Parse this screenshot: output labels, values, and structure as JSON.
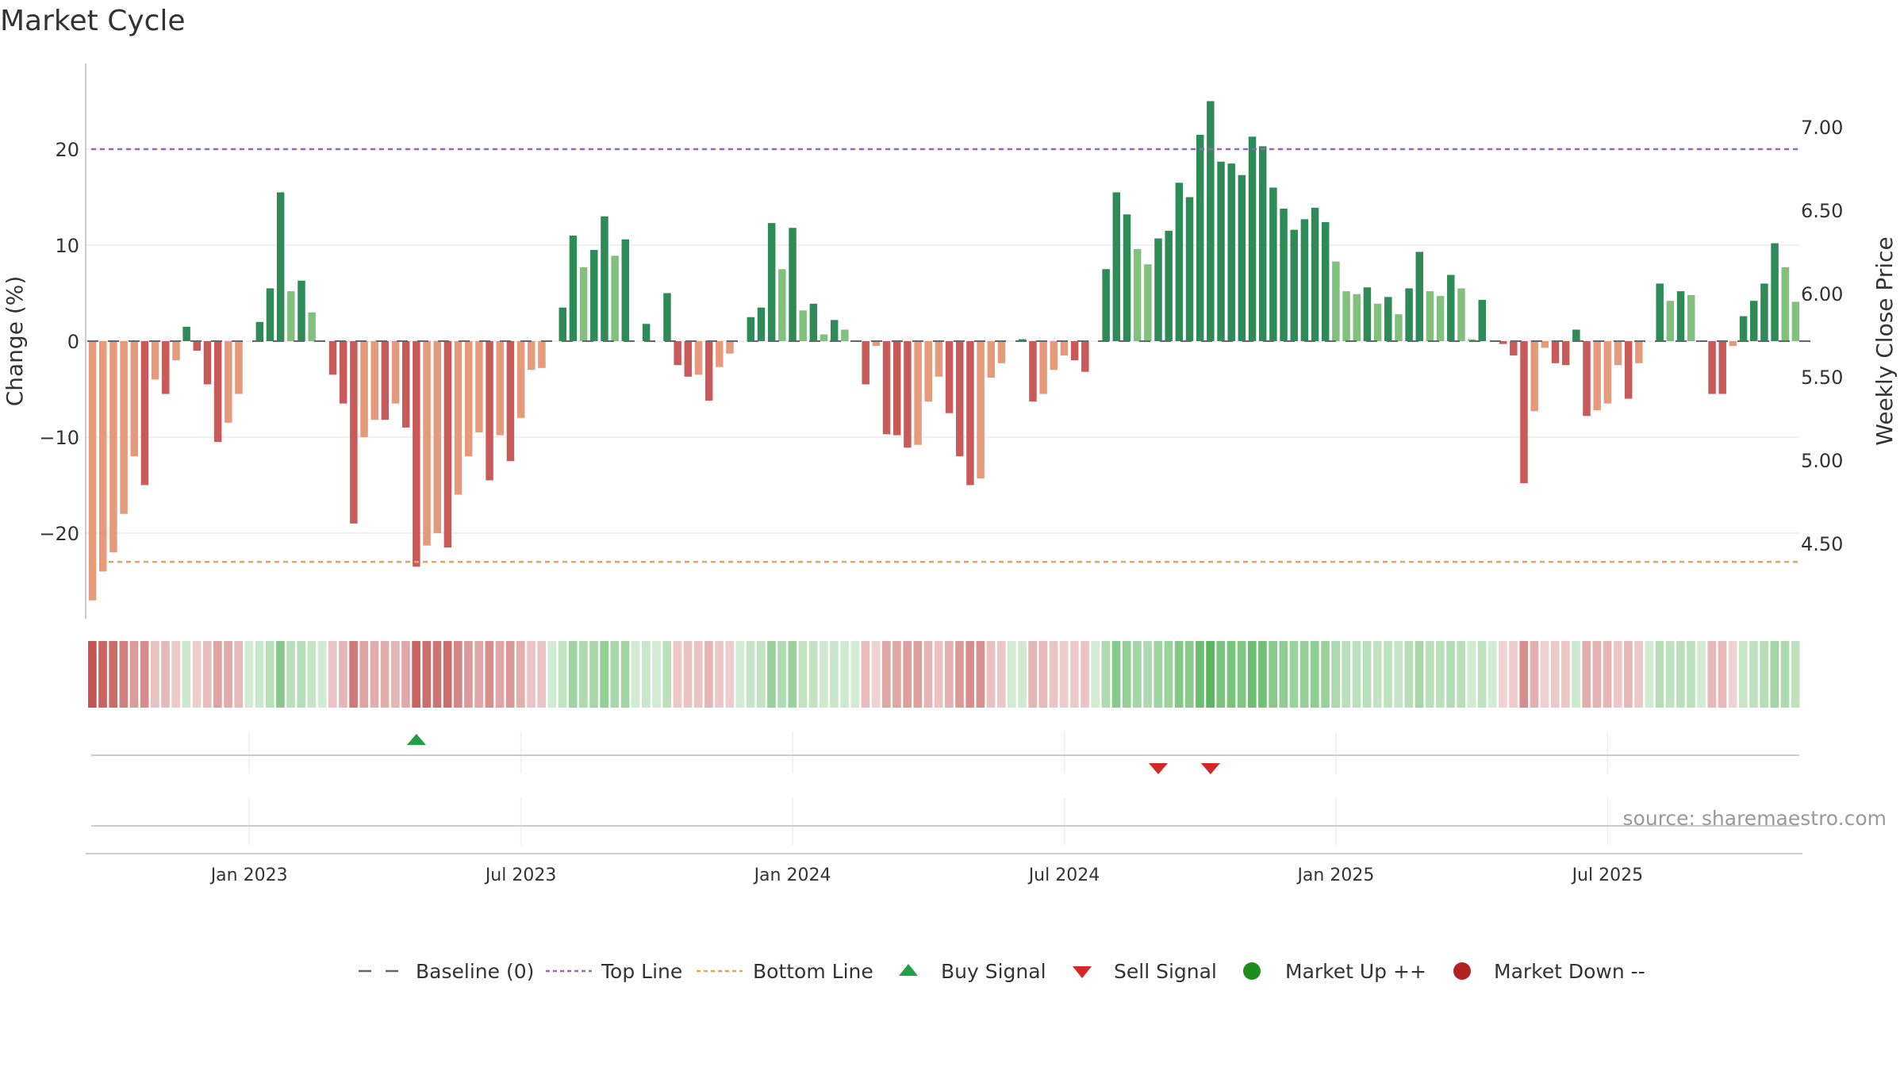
{
  "chart_data": {
    "type": "bar",
    "title": "Market Cycle",
    "ylabel": "Change (%)",
    "y2label": "Weekly Close Price",
    "ylim": [
      -29,
      29
    ],
    "y2lim": [
      4.1,
      7.4
    ],
    "y_ticks": [
      20,
      10,
      0,
      -10,
      -20
    ],
    "y_tick_labels": [
      "20",
      "10",
      "0",
      "−10",
      "−20"
    ],
    "y2_ticks": [
      7.0,
      6.5,
      6.0,
      5.5,
      5.0,
      4.5
    ],
    "y2_tick_labels": [
      "7.00",
      "6.50",
      "6.00",
      "5.50",
      "5.00",
      "4.50"
    ],
    "x_tick_labels": [
      "Jan 2023",
      "Jul 2023",
      "Jan 2024",
      "Jul 2024",
      "Jan 2025",
      "Jul 2025"
    ],
    "x_tick_weeks": [
      15,
      41,
      67,
      93,
      119,
      145
    ],
    "top_line": 20,
    "bottom_line": -23,
    "grid": true,
    "legend_position": "bottom-center",
    "source": "source: sharemaestro.com",
    "weekly_change_pct": [
      -27,
      -24,
      -22,
      -18,
      -12,
      -15,
      -4,
      -5.5,
      -2,
      1.5,
      -1,
      -4.5,
      -10.5,
      -8.5,
      -5.5,
      0,
      2,
      5.5,
      15.5,
      5.2,
      6.3,
      3,
      0,
      -3.5,
      -6.5,
      -19,
      -10,
      -8.2,
      -8.2,
      -6.5,
      -9,
      -23.5,
      -21.3,
      -20,
      -21.5,
      -16,
      -12,
      -9.5,
      -14.5,
      -9.8,
      -12.5,
      -8,
      -3,
      -2.8,
      0,
      3.5,
      11,
      7.7,
      9.5,
      13,
      8.9,
      10.6,
      0,
      1.8,
      0,
      5,
      -2.5,
      -3.7,
      -3.5,
      -6.2,
      -2.7,
      -1.3,
      0,
      2.5,
      3.5,
      12.3,
      7.5,
      11.8,
      3.2,
      3.9,
      0.7,
      2.2,
      1.2,
      0,
      -4.5,
      -0.5,
      -9.7,
      -9.8,
      -11.1,
      -10.8,
      -6.3,
      -3.7,
      -7.5,
      -12,
      -15,
      -14.3,
      -3.8,
      -2.3,
      0,
      0.2,
      -6.3,
      -5.5,
      -3,
      -1.5,
      -2,
      -3.2,
      0,
      7.5,
      15.5,
      13.2,
      9.6,
      8,
      10.7,
      11.5,
      16.5,
      15,
      21.5,
      25,
      18.7,
      18.5,
      17.3,
      21.3,
      20.3,
      16,
      13.8,
      11.6,
      12.7,
      13.9,
      12.4,
      8.3,
      5.2,
      4.9,
      5.6,
      3.9,
      4.6,
      2.8,
      5.5,
      9.3,
      5.2,
      4.7,
      6.9,
      5.5,
      0.2,
      4.3,
      0,
      -0.3,
      -1.5,
      -14.8,
      -7.3,
      -0.7,
      -2.3,
      -2.5,
      1.2,
      -7.8,
      -7.2,
      -6.5,
      -2.5,
      -6,
      -2.3,
      0,
      6,
      4.2,
      5.2,
      4.8,
      0,
      -5.5,
      -5.5,
      -0.5,
      2.6,
      4.2,
      6,
      10.2,
      7.7,
      4.1
    ],
    "buy_signal_weeks": [
      31
    ],
    "sell_signal_weeks": [
      102,
      107
    ],
    "series": [
      {
        "name": "Baseline (0)",
        "color": "#666666"
      },
      {
        "name": "Top Line",
        "color": "#9467bd"
      },
      {
        "name": "Bottom Line",
        "color": "#f0a057"
      },
      {
        "name": "Buy Signal",
        "color": "#22a045"
      },
      {
        "name": "Sell Signal",
        "color": "#d62728"
      },
      {
        "name": "Market Up ++",
        "color": "#1e8c1e"
      },
      {
        "name": "Market Down --",
        "color": "#b22222"
      }
    ],
    "colors": {
      "strong_up": "#2e8b57",
      "up": "#82c07e",
      "strong_down": "#c85a5a",
      "down": "#e59a7c",
      "heat_up": "#4caf50",
      "heat_down": "#c0504d"
    }
  }
}
